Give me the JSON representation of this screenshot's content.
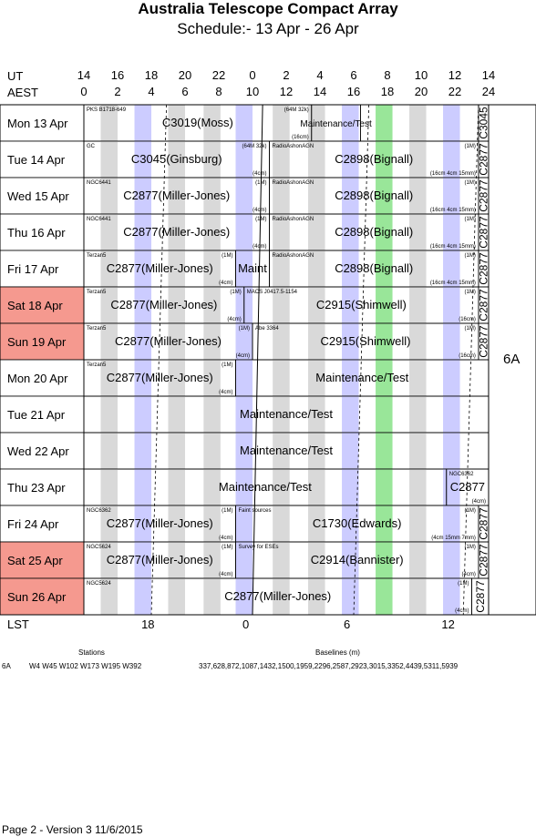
{
  "title": "Australia Telescope Compact Array",
  "subtitle": "Schedule:- 13 Apr - 26 Apr",
  "colors": {
    "maint": "#ccccff",
    "grey": "#d9d9d9",
    "green": "#99e699",
    "weekend": "#f5998f"
  },
  "axes": {
    "ut_label": "UT",
    "aest_label": "AEST",
    "lst_label": "LST",
    "ut_ticks": [
      "14",
      "16",
      "18",
      "20",
      "22",
      "0",
      "2",
      "4",
      "6",
      "8",
      "10",
      "12",
      "14"
    ],
    "aest_ticks": [
      "0",
      "2",
      "4",
      "6",
      "8",
      "10",
      "12",
      "14",
      "16",
      "18",
      "20",
      "22",
      "24"
    ],
    "lst_ticks": [
      "18",
      "0",
      "6",
      "12"
    ]
  },
  "config_label": "6A",
  "days": [
    {
      "label": "Mon   13 Apr",
      "weekend": false,
      "blocks": [
        {
          "s": 0,
          "e": 13.5,
          "code": "C3019(Moss)",
          "src": "PKS B1718-649",
          "note1": "(64M 32k)",
          "note2": "(16cm)"
        },
        {
          "s": 13.5,
          "e": 16.4,
          "code": "Maintenance/Test",
          "maint": true,
          "small": true
        },
        {
          "s": 16.4,
          "e": 23.4,
          "code": ""
        },
        {
          "s": 23.4,
          "e": 24,
          "code": "C3045",
          "vert": true
        }
      ]
    },
    {
      "label": "Tue   14 Apr",
      "weekend": false,
      "blocks": [
        {
          "s": 0,
          "e": 11,
          "code": "C3045(Ginsburg)",
          "src": "GC",
          "note1": "(64M 32k)",
          "note2": "(4cm)"
        },
        {
          "s": 11,
          "e": 23.4,
          "code": "C2898(Bignall)",
          "src": "RadioAshonAGN",
          "note1": "(1M)",
          "note2": "(16cm 4cm 15mm)"
        },
        {
          "s": 23.4,
          "e": 24,
          "code": "C2877",
          "vert": true
        }
      ]
    },
    {
      "label": "Wed   15 Apr",
      "weekend": false,
      "blocks": [
        {
          "s": 0,
          "e": 11,
          "code": "C2877(Miller-Jones)",
          "src": "NGC6441",
          "note1": "(1M)",
          "note2": "(4cm)"
        },
        {
          "s": 11,
          "e": 23.4,
          "code": "C2898(Bignall)",
          "src": "RadioAshonAGN",
          "note1": "(1M)",
          "note2": "(16cm 4cm 15mm)"
        },
        {
          "s": 23.4,
          "e": 24,
          "code": "C2877",
          "vert": true
        }
      ]
    },
    {
      "label": "Thu   16 Apr",
      "weekend": false,
      "blocks": [
        {
          "s": 0,
          "e": 11,
          "code": "C2877(Miller-Jones)",
          "src": "NGC6441",
          "note1": "(1M)",
          "note2": "(4cm)"
        },
        {
          "s": 11,
          "e": 23.4,
          "code": "C2898(Bignall)",
          "src": "RadioAshonAGN",
          "note1": "(1M)",
          "note2": "(16cm 4cm 15mm)"
        },
        {
          "s": 23.4,
          "e": 24,
          "code": "C2877",
          "vert": true
        }
      ]
    },
    {
      "label": "Fri    17 Apr",
      "weekend": false,
      "blocks": [
        {
          "s": 0,
          "e": 9,
          "code": "C2877(Miller-Jones)",
          "src": "Terzan5",
          "note1": "(1M)",
          "note2": "(4cm)"
        },
        {
          "s": 9,
          "e": 11,
          "code": "Maint",
          "maint": true
        },
        {
          "s": 11,
          "e": 23.4,
          "code": "C2898(Bignall)",
          "src": "RadioAshonAGN",
          "note1": "(1M)",
          "note2": "(16cm 4cm 15mm)"
        },
        {
          "s": 23.4,
          "e": 24,
          "code": "C2877",
          "vert": true
        }
      ]
    },
    {
      "label": "Sat   18 Apr",
      "weekend": true,
      "blocks": [
        {
          "s": 0,
          "e": 9.5,
          "code": "C2877(Miller-Jones)",
          "src": "Terzan5",
          "note1": "(1M)",
          "note2": "(4cm)"
        },
        {
          "s": 9.5,
          "e": 23.4,
          "code": "C2915(Shimwell)",
          "src": "MACS J0417.5-1154",
          "note1": "(1M)",
          "note2": "(16cm)"
        },
        {
          "s": 23.4,
          "e": 24,
          "code": "C2877",
          "vert": true
        }
      ]
    },
    {
      "label": "Sun   19 Apr",
      "weekend": true,
      "blocks": [
        {
          "s": 0,
          "e": 10,
          "code": "C2877(Miller-Jones)",
          "src": "Terzan5",
          "note1": "(1M)",
          "note2": "(4cm)"
        },
        {
          "s": 10,
          "e": 23.4,
          "code": "C2915(Shimwell)",
          "src": "Abe 3364",
          "note1": "(1M)",
          "note2": "(16cm)"
        },
        {
          "s": 23.4,
          "e": 24,
          "code": "C2877",
          "vert": true
        }
      ]
    },
    {
      "label": "Mon   20 Apr",
      "weekend": false,
      "blocks": [
        {
          "s": 0,
          "e": 9,
          "code": "C2877(Miller-Jones)",
          "src": "Terzan5",
          "note1": "(1M)",
          "note2": "(4cm)"
        },
        {
          "s": 9,
          "e": 24,
          "code": "Maintenance/Test",
          "maint": true
        }
      ]
    },
    {
      "label": "Tue   21 Apr",
      "weekend": false,
      "blocks": [
        {
          "s": 0,
          "e": 24,
          "code": "Maintenance/Test",
          "maint": true
        }
      ]
    },
    {
      "label": "Wed   22 Apr",
      "weekend": false,
      "blocks": [
        {
          "s": 0,
          "e": 24,
          "code": "Maintenance/Test",
          "maint": true
        }
      ]
    },
    {
      "label": "Thu   23 Apr",
      "weekend": false,
      "blocks": [
        {
          "s": 0,
          "e": 21.5,
          "code": "Maintenance/Test",
          "maint": true
        },
        {
          "s": 21.5,
          "e": 24,
          "code": "C2877",
          "src": "NGC6362",
          "note2": "(4cm)"
        }
      ]
    },
    {
      "label": "Fri    24 Apr",
      "weekend": false,
      "blocks": [
        {
          "s": 0,
          "e": 9,
          "code": "C2877(Miller-Jones)",
          "src": "NGC6362",
          "note1": "(1M)",
          "note2": "(4cm)"
        },
        {
          "s": 9,
          "e": 23.4,
          "code": "C1730(Edwards)",
          "src": "Faint sources",
          "note1": "(1M)",
          "note2": "(4cm 15mm 7mm)"
        },
        {
          "s": 23.4,
          "e": 24,
          "code": "C2877",
          "vert": true
        }
      ]
    },
    {
      "label": "Sat   25 Apr",
      "weekend": true,
      "blocks": [
        {
          "s": 0,
          "e": 9,
          "code": "C2877(Miller-Jones)",
          "src": "NGC5624",
          "note1": "(1M)",
          "note2": "(4cm)"
        },
        {
          "s": 9,
          "e": 23.4,
          "code": "C2914(Bannister)",
          "src": "Survey for ESEs",
          "note1": "(1M)",
          "note2": "(4cm)"
        },
        {
          "s": 23.4,
          "e": 24,
          "code": "C2877",
          "vert": true
        }
      ]
    },
    {
      "label": "Sun   26 Apr",
      "weekend": true,
      "blocks": [
        {
          "s": 0,
          "e": 23,
          "code": "C2877(Miller-Jones)",
          "src": "NGC5624",
          "note1": "(1M)",
          "note2": "(4cm)"
        },
        {
          "s": 23,
          "e": 24,
          "code": "C2877",
          "vert": true
        }
      ]
    }
  ],
  "footer": {
    "stations_header": "Stations",
    "baselines_header": "Baselines (m)",
    "config": "6A",
    "stations": "W4 W45 W102 W173 W195 W392",
    "baselines": "337,628,872,1087,1432,1500,1959,2296,2587,2923,3015,3352,4439,5311,5939",
    "page_note": "Page 2 - Version 3  11/6/2015"
  }
}
